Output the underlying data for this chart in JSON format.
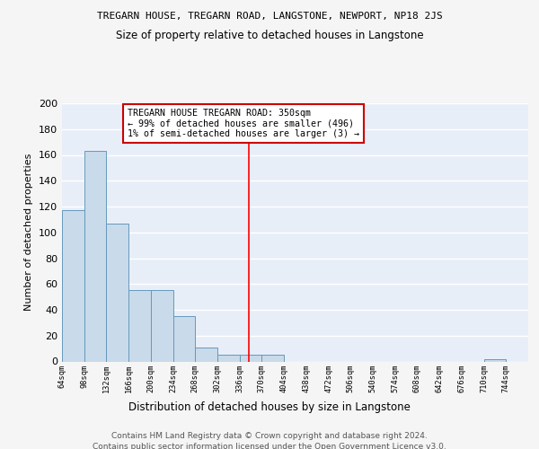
{
  "title": "TREGARN HOUSE, TREGARN ROAD, LANGSTONE, NEWPORT, NP18 2JS",
  "subtitle": "Size of property relative to detached houses in Langstone",
  "xlabel": "Distribution of detached houses by size in Langstone",
  "ylabel": "Number of detached properties",
  "bins": [
    64,
    98,
    132,
    166,
    200,
    234,
    268,
    302,
    336,
    370,
    404,
    438,
    472,
    506,
    540,
    574,
    608,
    642,
    676,
    710,
    744
  ],
  "counts": [
    117,
    163,
    107,
    55,
    55,
    35,
    11,
    5,
    5,
    5,
    0,
    0,
    0,
    0,
    0,
    0,
    0,
    0,
    0,
    2,
    0
  ],
  "bar_color": "#c9daea",
  "bar_edge_color": "#6699bb",
  "bg_color": "#e8eef8",
  "grid_color": "#ffffff",
  "red_line_x": 350,
  "annotation_text": "TREGARN HOUSE TREGARN ROAD: 350sqm\n← 99% of detached houses are smaller (496)\n1% of semi-detached houses are larger (3) →",
  "annotation_box_color": "#ffffff",
  "annotation_box_edge": "#cc0000",
  "footer_text": "Contains HM Land Registry data © Crown copyright and database right 2024.\nContains public sector information licensed under the Open Government Licence v3.0.",
  "ylim": [
    0,
    200
  ],
  "yticks": [
    0,
    20,
    40,
    60,
    80,
    100,
    120,
    140,
    160,
    180,
    200
  ],
  "tick_labels": [
    "64sqm",
    "98sqm",
    "132sqm",
    "166sqm",
    "200sqm",
    "234sqm",
    "268sqm",
    "302sqm",
    "336sqm",
    "370sqm",
    "404sqm",
    "438sqm",
    "472sqm",
    "506sqm",
    "540sqm",
    "574sqm",
    "608sqm",
    "642sqm",
    "676sqm",
    "710sqm",
    "744sqm"
  ],
  "fig_bg": "#f5f5f5"
}
